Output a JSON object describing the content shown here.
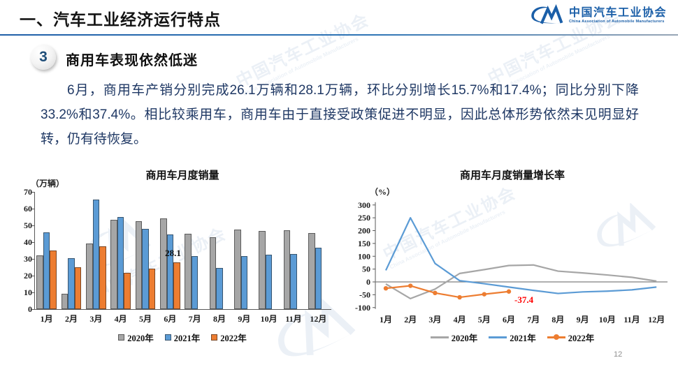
{
  "header": {
    "title": "一、汽车工业经济运行特点",
    "logo": {
      "cn": "中国汽车工业协会",
      "en": "China Association of Automobile Manufacturers"
    }
  },
  "section": {
    "number": "3",
    "heading": "商用车表现依然低迷"
  },
  "paragraph": "6月，商用车产销分别完成26.1万辆和28.1万辆，环比分别增长15.7%和17.4%；同比分别下降33.2%和37.4%。相比较乘用车，商用车由于直接受政策促进不明显，因此总体形势依然未见明显好转，仍有待恢复。",
  "watermark": {
    "cn": "中国汽车工业协会",
    "en": "China Association of Automobile Manufacturers"
  },
  "page_number": "12",
  "colors": {
    "series2020": "#A6A6A6",
    "series2021": "#5B9BD5",
    "series2022": "#ED7D31",
    "body_text": "#1F3864",
    "accent_line": "#2E75B6",
    "annotation_red": "#FF0000"
  },
  "chart_data": [
    {
      "type": "bar",
      "title": "商用车月度销量",
      "unit_label": "（万辆）",
      "categories": [
        "1月",
        "2月",
        "3月",
        "4月",
        "5月",
        "6月",
        "7月",
        "8月",
        "9月",
        "10月",
        "11月",
        "12月"
      ],
      "series": [
        {
          "name": "2020年",
          "color_key": "series2020",
          "values": [
            32,
            9,
            39,
            53.5,
            52.5,
            54,
            45,
            43,
            47.5,
            46.5,
            47,
            45.5
          ]
        },
        {
          "name": "2021年",
          "color_key": "series2021",
          "values": [
            46,
            30.5,
            65.5,
            55,
            48,
            44.5,
            31.5,
            24.5,
            31.5,
            32.5,
            33,
            36.5
          ]
        },
        {
          "name": "2022年",
          "color_key": "series2022",
          "values": [
            35,
            25,
            37.5,
            21.5,
            24,
            28.1
          ]
        }
      ],
      "ylim": [
        0,
        70
      ],
      "ytick_step": 10,
      "grid": false,
      "legend_position": "bottom",
      "annotation": {
        "text": "28.1",
        "series": 2,
        "index": 5
      }
    },
    {
      "type": "line",
      "title": "商用车月度销量增长率",
      "unit_label": "（%）",
      "categories": [
        "1月",
        "2月",
        "3月",
        "4月",
        "5月",
        "6月",
        "7月",
        "8月",
        "9月",
        "10月",
        "11月",
        "12月"
      ],
      "series": [
        {
          "name": "2020年",
          "color_key": "series2020",
          "marker": false,
          "values": [
            -8,
            -65,
            -28,
            33,
            48,
            64,
            66,
            42,
            35,
            27,
            18,
            3
          ]
        },
        {
          "name": "2021年",
          "color_key": "series2021",
          "marker": false,
          "values": [
            45,
            250,
            72,
            5,
            -7,
            -20,
            -33,
            -45,
            -39,
            -36,
            -31,
            -20
          ]
        },
        {
          "name": "2022年",
          "color_key": "series2022",
          "marker": true,
          "values": [
            -25,
            -15,
            -43,
            -60,
            -48,
            -37.4
          ]
        }
      ],
      "ylim": [
        -100,
        300
      ],
      "ytick_step": 50,
      "grid": false,
      "legend_position": "bottom",
      "annotation": {
        "text": "-37.4",
        "series": 2,
        "index": 5,
        "color_key": "annotation_red"
      }
    }
  ]
}
